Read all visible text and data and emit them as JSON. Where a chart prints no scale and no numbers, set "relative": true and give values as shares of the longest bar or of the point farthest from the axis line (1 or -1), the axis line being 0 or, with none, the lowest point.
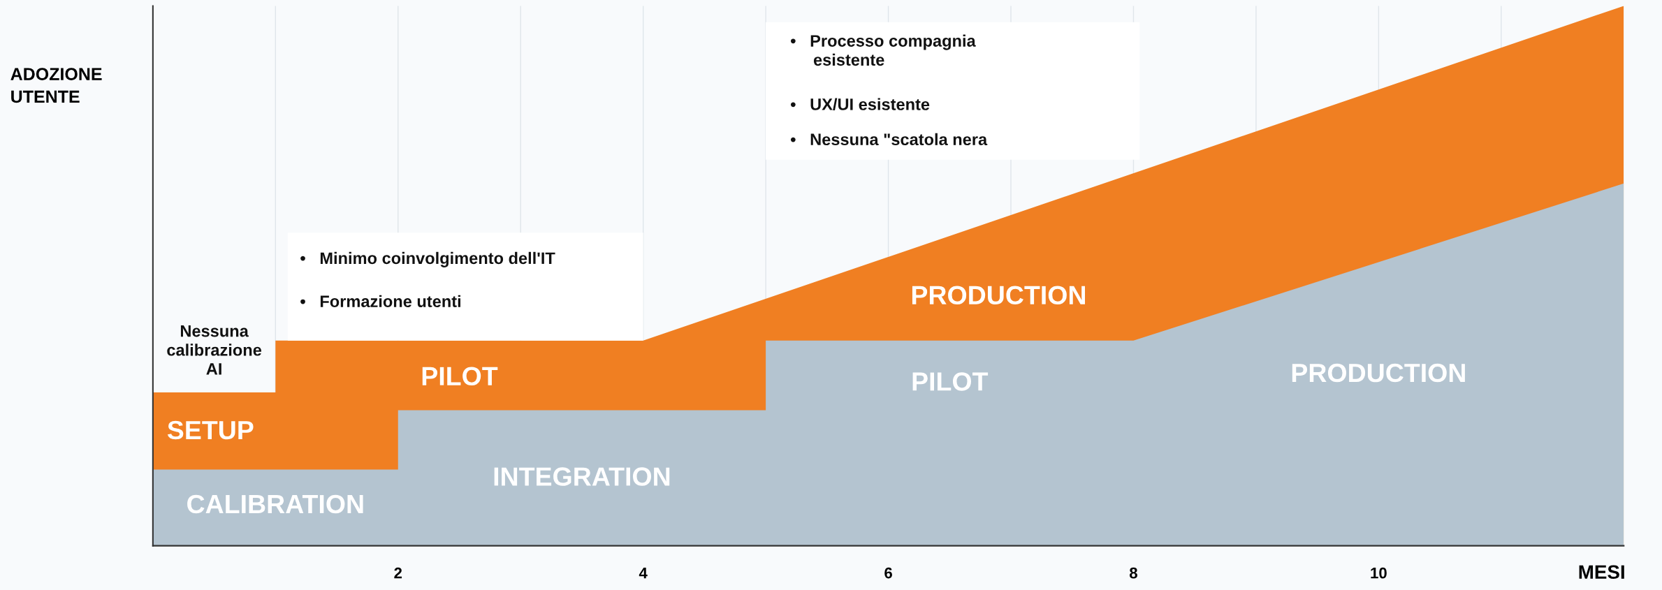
{
  "chart_data": {
    "type": "area",
    "relative": true,
    "xlabel": "MESI",
    "ylabel": "ADOZIONE\nUTENTE",
    "xlim": [
      0,
      12
    ],
    "xticks": [
      {
        "value": 1,
        "label": null
      },
      2,
      {
        "value": 3,
        "label": null
      },
      4,
      {
        "value": 5,
        "label": null
      },
      6,
      {
        "value": 7,
        "label": null
      },
      8,
      {
        "value": 9,
        "label": null
      },
      10,
      {
        "value": 11,
        "label": null
      }
    ],
    "grid": "x",
    "series": [
      {
        "color": "#f07f22",
        "x": [
          0,
          1,
          1,
          4,
          12
        ],
        "values": [
          0.284,
          0.284,
          0.38,
          0.38,
          1.0
        ]
      },
      {
        "color": "#b4c4d0",
        "x": [
          0,
          2,
          2,
          5,
          5,
          8,
          12
        ],
        "values": [
          0.141,
          0.141,
          0.251,
          0.251,
          0.38,
          0.38,
          0.671
        ]
      }
    ],
    "annotations": [
      "CALIBRATION",
      "SETUP",
      "PILOT",
      "INTEGRATION",
      "PILOT",
      "PRODUCTION",
      "PRODUCTION",
      "Nessuna\ncalibrazione\nAI",
      "•   Minimo coinvolgimento dell'IT",
      "•   Formazione utenti",
      "•   Processo compagnia\n     esistente",
      "•   UX/UI esistente",
      "•   Nessuna \"scatola nera"
    ]
  }
}
